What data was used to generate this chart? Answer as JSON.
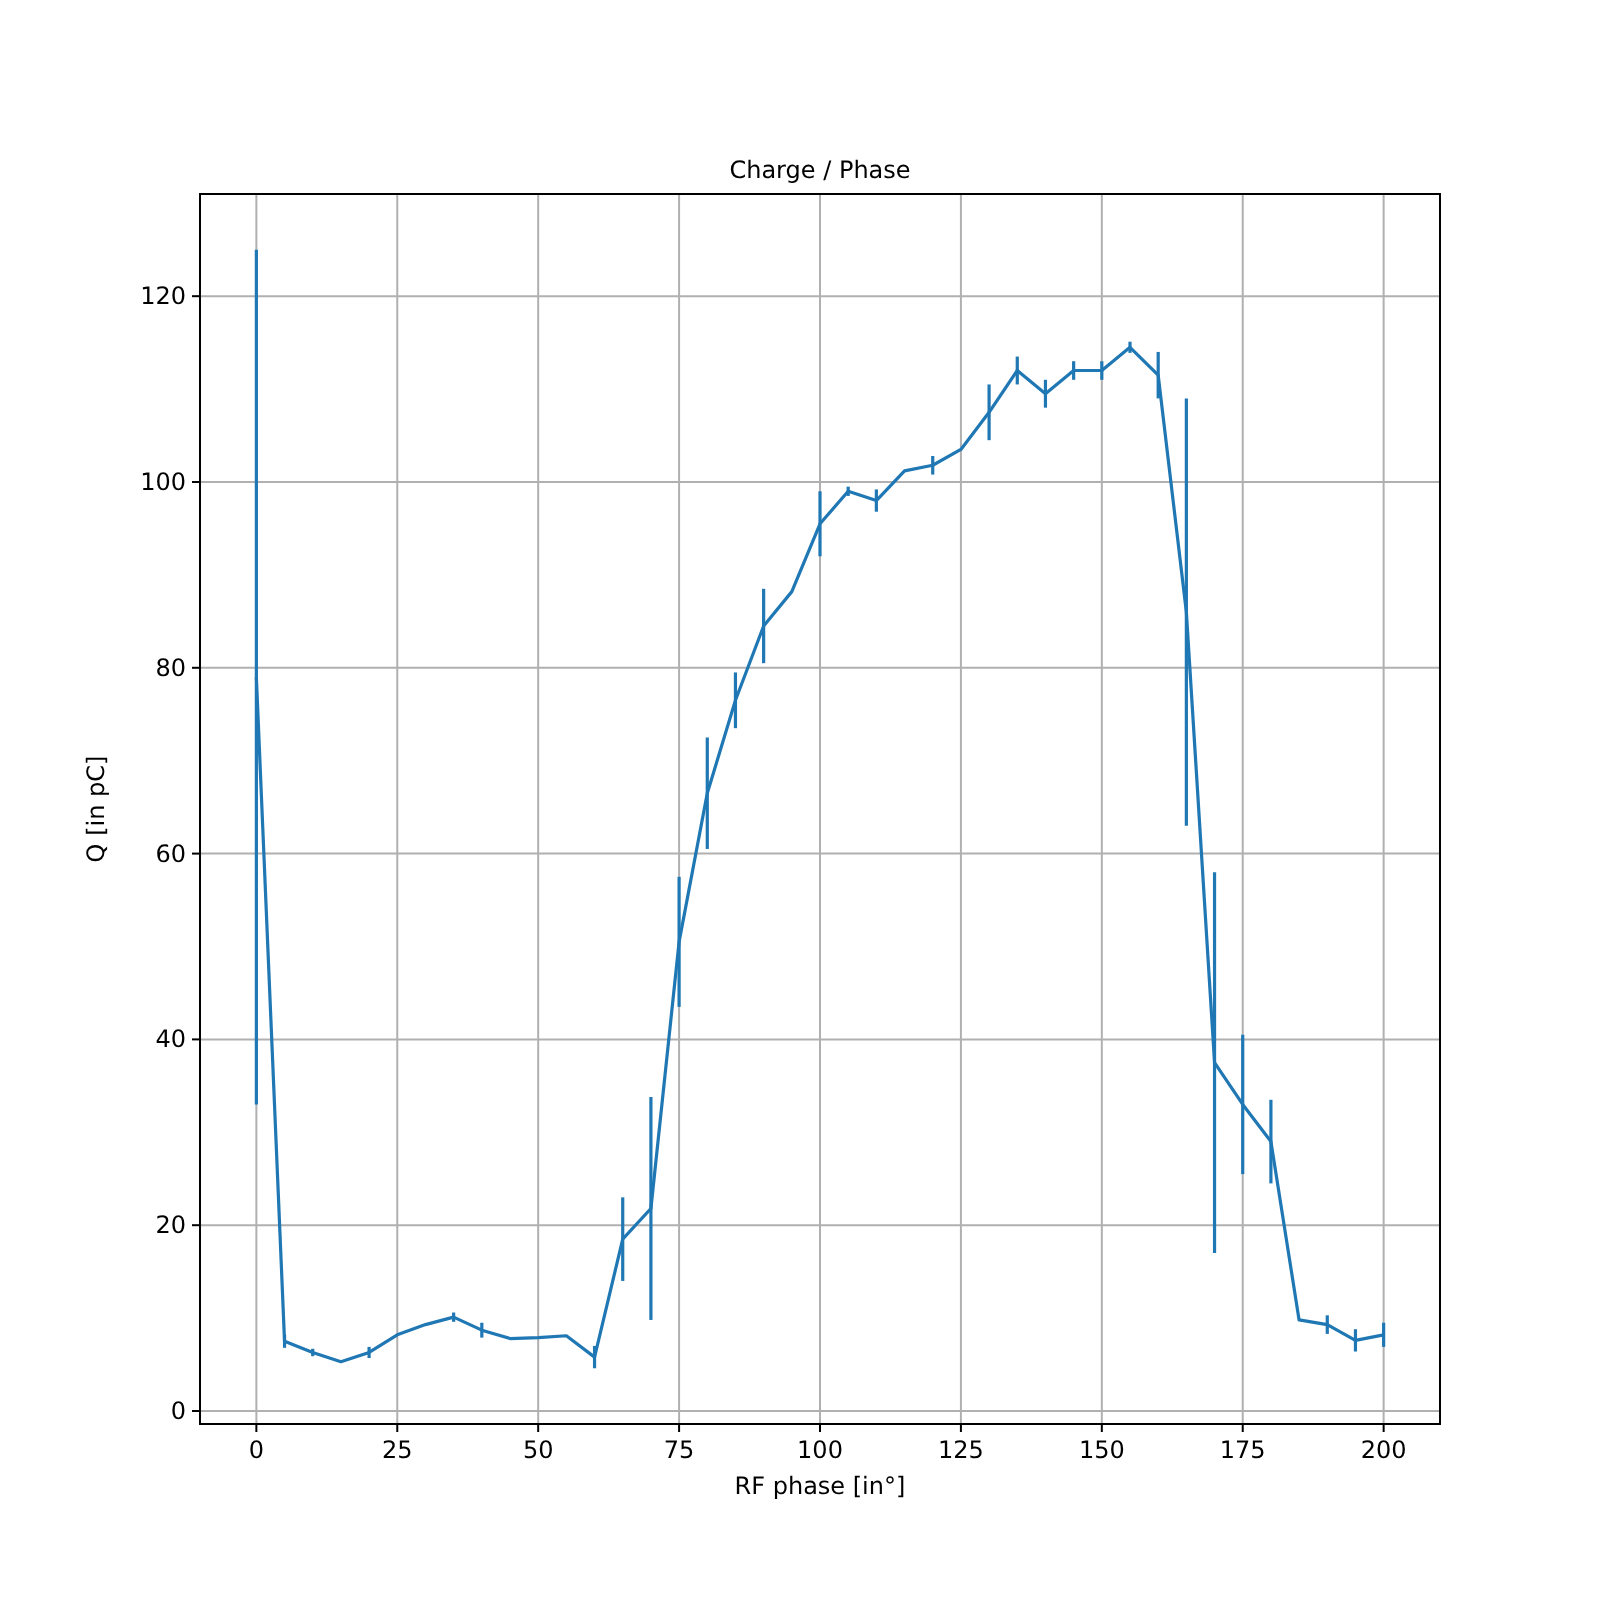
{
  "chart_data": {
    "type": "line",
    "title": "Charge / Phase",
    "xlabel": "RF phase [in°]",
    "ylabel": "Q  [in  pC]",
    "x": [
      0,
      5,
      10,
      15,
      20,
      25,
      30,
      35,
      40,
      45,
      50,
      55,
      60,
      65,
      70,
      75,
      80,
      85,
      90,
      95,
      100,
      105,
      110,
      115,
      120,
      125,
      130,
      135,
      140,
      145,
      150,
      155,
      160,
      165,
      170,
      175,
      180,
      185,
      190,
      195,
      200
    ],
    "series": [
      {
        "color": "#1f77b4",
        "values": [
          79,
          7.5,
          6.3,
          5.3,
          6.3,
          8.2,
          9.3,
          10.1,
          8.7,
          7.8,
          7.9,
          8.1,
          5.8,
          18.5,
          21.8,
          50.5,
          66.5,
          76.5,
          84.5,
          88.2,
          95.5,
          99,
          98,
          101.2,
          101.8,
          103.5,
          107.5,
          112,
          109.5,
          112,
          112,
          114.5,
          111.5,
          86,
          37.5,
          33,
          29,
          9.8,
          9.3,
          7.6,
          8.2
        ],
        "errors": [
          46,
          0.7,
          0.4,
          null,
          0.6,
          null,
          null,
          0.5,
          0.8,
          null,
          null,
          null,
          1.2,
          4.5,
          12,
          7,
          6,
          3,
          4,
          null,
          3.5,
          0.5,
          1.2,
          null,
          1,
          null,
          3,
          1.5,
          1.5,
          1,
          1,
          0.6,
          2.5,
          23,
          20.5,
          7.5,
          4.5,
          null,
          1,
          1.2,
          1.3
        ]
      }
    ],
    "xlim": [
      -10,
      210
    ],
    "xticks": [
      0,
      25,
      50,
      75,
      100,
      125,
      150,
      175,
      200
    ],
    "ylim": [
      -1.4,
      131
    ],
    "yticks": [
      0,
      20,
      40,
      60,
      80,
      100,
      120
    ],
    "grid": true,
    "marker": "none",
    "line_style": "solid"
  }
}
